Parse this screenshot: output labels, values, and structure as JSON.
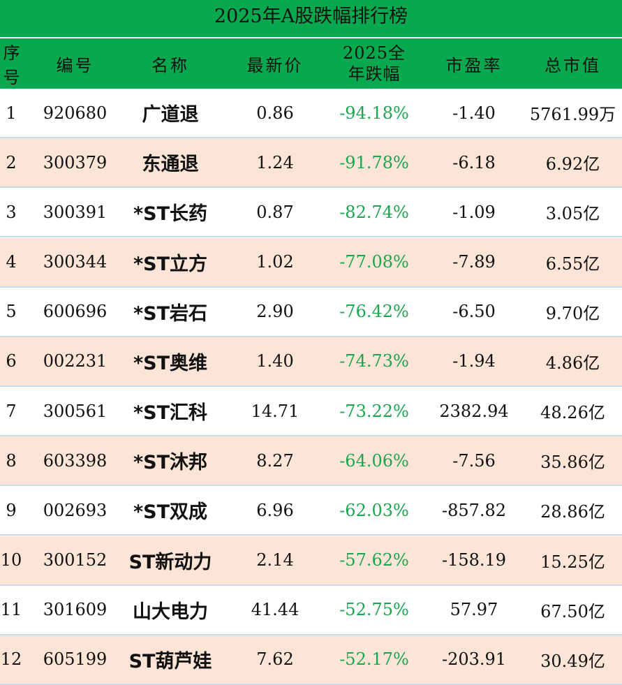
{
  "title": "2025年A股跌幅排行榜",
  "table": {
    "headers": [
      "序号",
      "编号",
      "名称",
      "最新价",
      "2025全年跌幅",
      "市盈率",
      "总市值"
    ],
    "rows": [
      [
        "1",
        "920680",
        "广道退",
        "0.86",
        "-94.18%",
        "-1.40",
        "5761.99万"
      ],
      [
        "2",
        "300379",
        "东通退",
        "1.24",
        "-91.78%",
        "-6.18",
        "6.92亿"
      ],
      [
        "3",
        "300391",
        "*ST长药",
        "0.87",
        "-82.74%",
        "-1.09",
        "3.05亿"
      ],
      [
        "4",
        "300344",
        "*ST立方",
        "1.02",
        "-77.08%",
        "-7.89",
        "6.55亿"
      ],
      [
        "5",
        "600696",
        "*ST岩石",
        "2.90",
        "-76.42%",
        "-6.50",
        "9.70亿"
      ],
      [
        "6",
        "002231",
        "*ST奥维",
        "1.40",
        "-74.73%",
        "-1.94",
        "4.86亿"
      ],
      [
        "7",
        "300561",
        "*ST汇科",
        "14.71",
        "-73.22%",
        "2382.94",
        "48.26亿"
      ],
      [
        "8",
        "603398",
        "*ST沐邦",
        "8.27",
        "-64.06%",
        "-7.56",
        "35.86亿"
      ],
      [
        "9",
        "002693",
        "*ST双成",
        "6.96",
        "-62.03%",
        "-857.82",
        "28.86亿"
      ],
      [
        "10",
        "300152",
        "ST新动力",
        "2.14",
        "-57.62%",
        "-158.19",
        "15.25亿"
      ],
      [
        "11",
        "301609",
        "山大电力",
        "41.44",
        "-52.75%",
        "57.97",
        "67.50亿"
      ],
      [
        "12",
        "605199",
        "ST葫芦娃",
        "7.62",
        "-52.17%",
        "-203.91",
        "30.49亿"
      ]
    ]
  }
}
